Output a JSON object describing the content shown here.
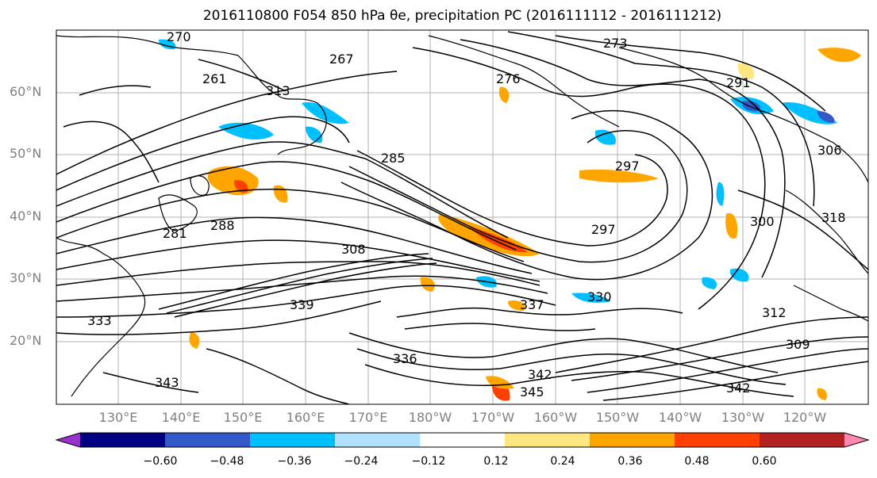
{
  "title": "2016110800 F054 850 hPa θe, precipitation PC (2016111112 - 2016111212)",
  "lat_labels": [
    "60°N",
    "50°N",
    "40°N",
    "30°N",
    "20°N"
  ],
  "lon_labels": [
    "130°E",
    "140°E",
    "150°E",
    "160°E",
    "170°E",
    "180°W",
    "170°W",
    "160°W",
    "150°W",
    "140°W",
    "130°W",
    "120°W"
  ],
  "contour_labels": [
    "270",
    "267",
    "261",
    "273",
    "276",
    "291",
    "285",
    "297",
    "297",
    "288",
    "281",
    "300",
    "318",
    "306",
    "308",
    "313",
    "333",
    "339",
    "330",
    "336",
    "312",
    "309",
    "345",
    "342",
    "342",
    "343",
    "337"
  ],
  "colorbar": {
    "ticks": [
      "−0.60",
      "−0.48",
      "−0.36",
      "−0.24",
      "−0.12",
      "0.12",
      "0.24",
      "0.36",
      "0.48",
      "0.60"
    ],
    "colors": [
      "#9932cc",
      "#000080",
      "#3358c8",
      "#00bfff",
      "#b0e2ff",
      "#ffffff",
      "#ffe680",
      "#ffa500",
      "#ff4000",
      "#b22222",
      "#ff88b0"
    ]
  }
}
